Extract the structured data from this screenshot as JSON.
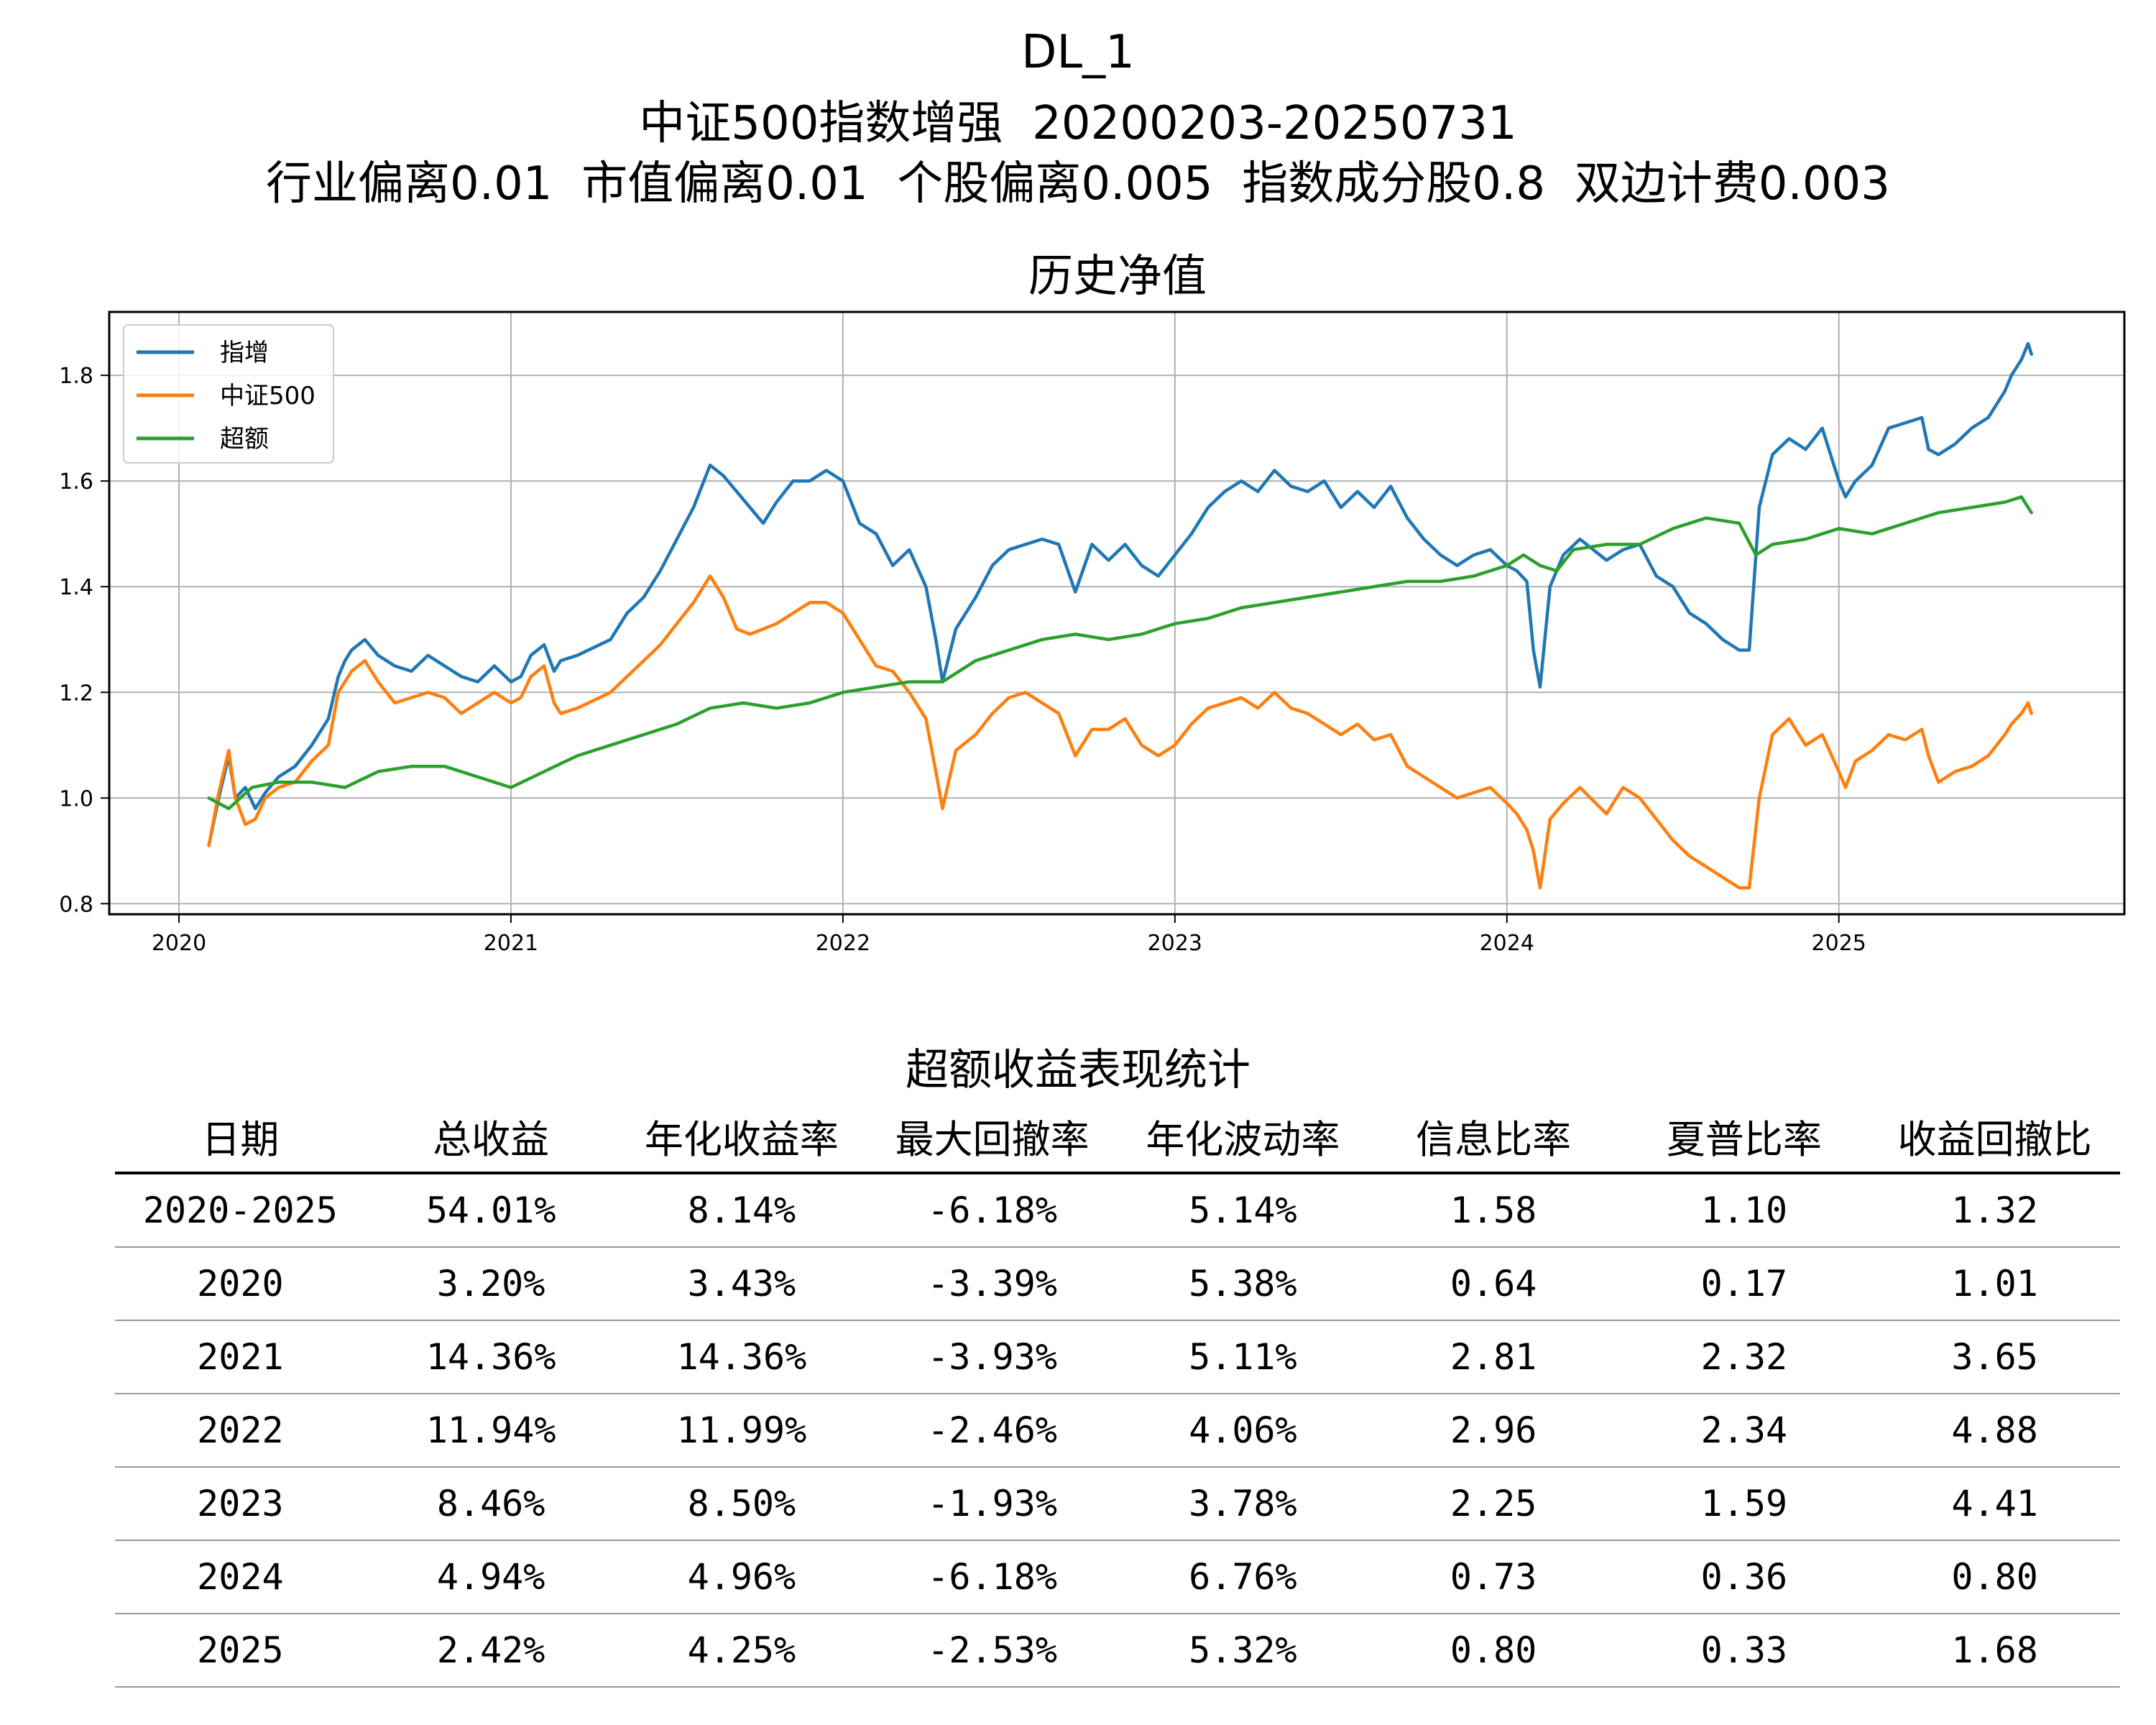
{
  "header": {
    "line1": "DL_1",
    "line2": "中证500指数增强  20200203-20250731",
    "line3": "行业偏离0.01  市值偏离0.01  个股偏离0.005  指数成分股0.8  双边计费0.003"
  },
  "colors": {
    "series1": "#1f77b4",
    "series2": "#ff7f0e",
    "series3": "#2ca02c",
    "grid": "#b0b0b0"
  },
  "chart_data": {
    "type": "line",
    "title": "历史净值",
    "xlabel": "",
    "ylabel": "",
    "x_range": [
      2019.79,
      2025.86
    ],
    "ylim": [
      0.78,
      1.92
    ],
    "x_ticks": [
      2020,
      2021,
      2022,
      2023,
      2024,
      2025
    ],
    "x_tick_labels": [
      "2020",
      "2021",
      "2022",
      "2023",
      "2024",
      "2025"
    ],
    "y_ticks": [
      0.8,
      1.0,
      1.2,
      1.4,
      1.6,
      1.8
    ],
    "y_tick_labels": [
      "0.8",
      "1.0",
      "1.2",
      "1.4",
      "1.6",
      "1.8"
    ],
    "grid": true,
    "legend_position": "upper-left",
    "series": [
      {
        "name": "指增",
        "color": "#1f77b4",
        "x": [
          2020.09,
          2020.12,
          2020.15,
          2020.17,
          2020.2,
          2020.23,
          2020.26,
          2020.3,
          2020.35,
          2020.4,
          2020.45,
          2020.48,
          2020.5,
          2020.52,
          2020.56,
          2020.6,
          2020.65,
          2020.7,
          2020.75,
          2020.8,
          2020.85,
          2020.9,
          2020.95,
          2021.0,
          2021.03,
          2021.06,
          2021.1,
          2021.13,
          2021.15,
          2021.2,
          2021.3,
          2021.35,
          2021.4,
          2021.45,
          2021.5,
          2021.55,
          2021.6,
          2021.64,
          2021.68,
          2021.72,
          2021.76,
          2021.8,
          2021.85,
          2021.9,
          2021.95,
          2022.0,
          2022.05,
          2022.1,
          2022.15,
          2022.2,
          2022.25,
          2022.28,
          2022.3,
          2022.34,
          2022.4,
          2022.45,
          2022.5,
          2022.55,
          2022.6,
          2022.65,
          2022.7,
          2022.75,
          2022.8,
          2022.85,
          2022.9,
          2022.95,
          2023.0,
          2023.05,
          2023.1,
          2023.15,
          2023.2,
          2023.25,
          2023.3,
          2023.35,
          2023.4,
          2023.45,
          2023.5,
          2023.55,
          2023.6,
          2023.65,
          2023.7,
          2023.75,
          2023.8,
          2023.85,
          2023.9,
          2023.95,
          2024.0,
          2024.03,
          2024.06,
          2024.08,
          2024.1,
          2024.13,
          2024.17,
          2024.22,
          2024.3,
          2024.35,
          2024.4,
          2024.45,
          2024.5,
          2024.55,
          2024.6,
          2024.65,
          2024.7,
          2024.73,
          2024.76,
          2024.8,
          2024.85,
          2024.9,
          2024.95,
          2025.0,
          2025.02,
          2025.05,
          2025.1,
          2025.15,
          2025.2,
          2025.25,
          2025.27,
          2025.3,
          2025.35,
          2025.4,
          2025.45,
          2025.5,
          2025.52,
          2025.55,
          2025.57,
          2025.58
        ],
        "values": [
          0.91,
          1.0,
          1.08,
          1.0,
          1.02,
          0.98,
          1.01,
          1.04,
          1.06,
          1.1,
          1.15,
          1.23,
          1.26,
          1.28,
          1.3,
          1.27,
          1.25,
          1.24,
          1.27,
          1.25,
          1.23,
          1.22,
          1.25,
          1.22,
          1.23,
          1.27,
          1.29,
          1.24,
          1.26,
          1.27,
          1.3,
          1.35,
          1.38,
          1.43,
          1.49,
          1.55,
          1.63,
          1.61,
          1.58,
          1.55,
          1.52,
          1.56,
          1.6,
          1.6,
          1.62,
          1.6,
          1.52,
          1.5,
          1.44,
          1.47,
          1.4,
          1.3,
          1.22,
          1.32,
          1.38,
          1.44,
          1.47,
          1.48,
          1.49,
          1.48,
          1.39,
          1.48,
          1.45,
          1.48,
          1.44,
          1.42,
          1.46,
          1.5,
          1.55,
          1.58,
          1.6,
          1.58,
          1.62,
          1.59,
          1.58,
          1.6,
          1.55,
          1.58,
          1.55,
          1.59,
          1.53,
          1.49,
          1.46,
          1.44,
          1.46,
          1.47,
          1.44,
          1.43,
          1.41,
          1.28,
          1.21,
          1.4,
          1.46,
          1.49,
          1.45,
          1.47,
          1.48,
          1.42,
          1.4,
          1.35,
          1.33,
          1.3,
          1.28,
          1.28,
          1.55,
          1.65,
          1.68,
          1.66,
          1.7,
          1.6,
          1.57,
          1.6,
          1.63,
          1.7,
          1.71,
          1.72,
          1.66,
          1.65,
          1.67,
          1.7,
          1.72,
          1.77,
          1.8,
          1.83,
          1.86,
          1.84
        ]
      },
      {
        "name": "中证500",
        "color": "#ff7f0e",
        "x": [
          2020.09,
          2020.12,
          2020.15,
          2020.17,
          2020.2,
          2020.23,
          2020.26,
          2020.3,
          2020.35,
          2020.4,
          2020.45,
          2020.48,
          2020.5,
          2020.52,
          2020.56,
          2020.6,
          2020.65,
          2020.7,
          2020.75,
          2020.8,
          2020.85,
          2020.9,
          2020.95,
          2021.0,
          2021.03,
          2021.06,
          2021.1,
          2021.13,
          2021.15,
          2021.2,
          2021.3,
          2021.35,
          2021.4,
          2021.45,
          2021.5,
          2021.55,
          2021.6,
          2021.64,
          2021.68,
          2021.72,
          2021.76,
          2021.8,
          2021.85,
          2021.9,
          2021.95,
          2022.0,
          2022.05,
          2022.1,
          2022.15,
          2022.2,
          2022.25,
          2022.28,
          2022.3,
          2022.34,
          2022.4,
          2022.45,
          2022.5,
          2022.55,
          2022.6,
          2022.65,
          2022.7,
          2022.75,
          2022.8,
          2022.85,
          2022.9,
          2022.95,
          2023.0,
          2023.05,
          2023.1,
          2023.15,
          2023.2,
          2023.25,
          2023.3,
          2023.35,
          2023.4,
          2023.45,
          2023.5,
          2023.55,
          2023.6,
          2023.65,
          2023.7,
          2023.75,
          2023.8,
          2023.85,
          2023.9,
          2023.95,
          2024.0,
          2024.03,
          2024.06,
          2024.08,
          2024.1,
          2024.13,
          2024.17,
          2024.22,
          2024.3,
          2024.35,
          2024.4,
          2024.45,
          2024.5,
          2024.55,
          2024.6,
          2024.65,
          2024.7,
          2024.73,
          2024.76,
          2024.8,
          2024.85,
          2024.9,
          2024.95,
          2025.0,
          2025.02,
          2025.05,
          2025.1,
          2025.15,
          2025.2,
          2025.25,
          2025.27,
          2025.3,
          2025.35,
          2025.4,
          2025.45,
          2025.5,
          2025.52,
          2025.55,
          2025.57,
          2025.58
        ],
        "values": [
          0.91,
          1.01,
          1.09,
          1.0,
          0.95,
          0.96,
          1.0,
          1.02,
          1.03,
          1.07,
          1.1,
          1.2,
          1.22,
          1.24,
          1.26,
          1.22,
          1.18,
          1.19,
          1.2,
          1.19,
          1.16,
          1.18,
          1.2,
          1.18,
          1.19,
          1.23,
          1.25,
          1.18,
          1.16,
          1.17,
          1.2,
          1.23,
          1.26,
          1.29,
          1.33,
          1.37,
          1.42,
          1.38,
          1.32,
          1.31,
          1.32,
          1.33,
          1.35,
          1.37,
          1.37,
          1.35,
          1.3,
          1.25,
          1.24,
          1.2,
          1.15,
          1.05,
          0.98,
          1.09,
          1.12,
          1.16,
          1.19,
          1.2,
          1.18,
          1.16,
          1.08,
          1.13,
          1.13,
          1.15,
          1.1,
          1.08,
          1.1,
          1.14,
          1.17,
          1.18,
          1.19,
          1.17,
          1.2,
          1.17,
          1.16,
          1.14,
          1.12,
          1.14,
          1.11,
          1.12,
          1.06,
          1.04,
          1.02,
          1.0,
          1.01,
          1.02,
          0.99,
          0.97,
          0.94,
          0.9,
          0.83,
          0.96,
          0.99,
          1.02,
          0.97,
          1.02,
          1.0,
          0.96,
          0.92,
          0.89,
          0.87,
          0.85,
          0.83,
          0.83,
          1.0,
          1.12,
          1.15,
          1.1,
          1.12,
          1.05,
          1.02,
          1.07,
          1.09,
          1.12,
          1.11,
          1.13,
          1.08,
          1.03,
          1.05,
          1.06,
          1.08,
          1.12,
          1.14,
          1.16,
          1.18,
          1.16
        ]
      },
      {
        "name": "超额",
        "color": "#2ca02c",
        "x": [
          2020.09,
          2020.15,
          2020.22,
          2020.3,
          2020.4,
          2020.5,
          2020.6,
          2020.7,
          2020.8,
          2020.9,
          2021.0,
          2021.1,
          2021.2,
          2021.3,
          2021.4,
          2021.5,
          2021.6,
          2021.7,
          2021.8,
          2021.9,
          2022.0,
          2022.1,
          2022.2,
          2022.3,
          2022.4,
          2022.5,
          2022.6,
          2022.7,
          2022.8,
          2022.9,
          2023.0,
          2023.1,
          2023.2,
          2023.3,
          2023.4,
          2023.5,
          2023.6,
          2023.7,
          2023.8,
          2023.9,
          2024.0,
          2024.05,
          2024.1,
          2024.15,
          2024.2,
          2024.3,
          2024.4,
          2024.5,
          2024.6,
          2024.7,
          2024.75,
          2024.8,
          2024.9,
          2025.0,
          2025.1,
          2025.2,
          2025.3,
          2025.4,
          2025.5,
          2025.55,
          2025.58
        ],
        "values": [
          1.0,
          0.98,
          1.02,
          1.03,
          1.03,
          1.02,
          1.05,
          1.06,
          1.06,
          1.04,
          1.02,
          1.05,
          1.08,
          1.1,
          1.12,
          1.14,
          1.17,
          1.18,
          1.17,
          1.18,
          1.2,
          1.21,
          1.22,
          1.22,
          1.26,
          1.28,
          1.3,
          1.31,
          1.3,
          1.31,
          1.33,
          1.34,
          1.36,
          1.37,
          1.38,
          1.39,
          1.4,
          1.41,
          1.41,
          1.42,
          1.44,
          1.46,
          1.44,
          1.43,
          1.47,
          1.48,
          1.48,
          1.51,
          1.53,
          1.52,
          1.46,
          1.48,
          1.49,
          1.51,
          1.5,
          1.52,
          1.54,
          1.55,
          1.56,
          1.57,
          1.54
        ]
      }
    ]
  },
  "table": {
    "title": "超额收益表现统计",
    "headers": [
      "日期",
      "总收益",
      "年化收益率",
      "最大回撤率",
      "年化波动率",
      "信息比率",
      "夏普比率",
      "收益回撤比"
    ],
    "rows": [
      [
        "2020-2025",
        "54.01%",
        "8.14%",
        "-6.18%",
        "5.14%",
        "1.58",
        "1.10",
        "1.32"
      ],
      [
        "2020",
        "3.20%",
        "3.43%",
        "-3.39%",
        "5.38%",
        "0.64",
        "0.17",
        "1.01"
      ],
      [
        "2021",
        "14.36%",
        "14.36%",
        "-3.93%",
        "5.11%",
        "2.81",
        "2.32",
        "3.65"
      ],
      [
        "2022",
        "11.94%",
        "11.99%",
        "-2.46%",
        "4.06%",
        "2.96",
        "2.34",
        "4.88"
      ],
      [
        "2023",
        "8.46%",
        "8.50%",
        "-1.93%",
        "3.78%",
        "2.25",
        "1.59",
        "4.41"
      ],
      [
        "2024",
        "4.94%",
        "4.96%",
        "-6.18%",
        "6.76%",
        "0.73",
        "0.36",
        "0.80"
      ],
      [
        "2025",
        "2.42%",
        "4.25%",
        "-2.53%",
        "5.32%",
        "0.80",
        "0.33",
        "1.68"
      ]
    ]
  }
}
